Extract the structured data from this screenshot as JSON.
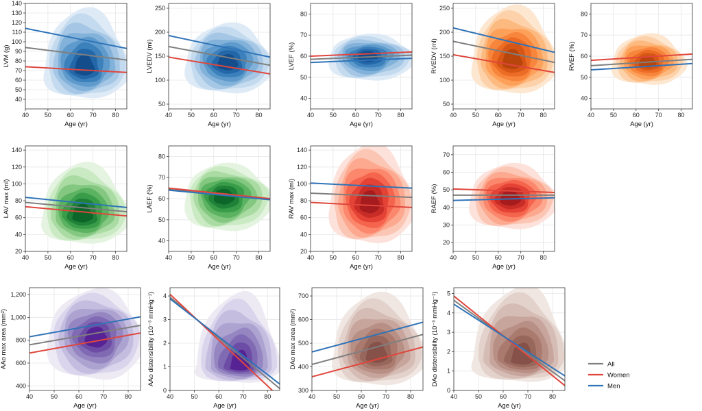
{
  "legend": [
    {
      "label": "All",
      "color": "#7f7f7f"
    },
    {
      "label": "Women",
      "color": "#e0463c"
    },
    {
      "label": "Men",
      "color": "#2f73b8"
    }
  ],
  "palettes": {
    "blue": [
      "#dbe9f6",
      "#c1d9ee",
      "#a2c6e4",
      "#7fb0d8",
      "#5b98ca",
      "#3a7fbb",
      "#2265a6",
      "#124b8a"
    ],
    "orange": [
      "#fde5cc",
      "#fdd0a6",
      "#fdb77d",
      "#fd9d57",
      "#f7823a",
      "#ea6a24",
      "#d45513",
      "#b5430c"
    ],
    "green": [
      "#e2f3dd",
      "#c8e8c1",
      "#a6d9a0",
      "#80c67e",
      "#58b15e",
      "#369a48",
      "#1d7f37",
      "#0b6428"
    ],
    "red": [
      "#fde0d8",
      "#fcc3b2",
      "#fca68d",
      "#fb866a",
      "#f4624b",
      "#e23f33",
      "#c62a26",
      "#a31a1c"
    ],
    "purple": [
      "#ebe8f3",
      "#d8d3ea",
      "#c2bbdd",
      "#aaa1cf",
      "#9283c0",
      "#7e68b2",
      "#6a4aa3",
      "#561f93"
    ],
    "brown": [
      "#efe4e0",
      "#e2d0c9",
      "#d4bab2",
      "#c5a39a",
      "#b68d83",
      "#a8786e",
      "#97655a",
      "#844f46"
    ]
  },
  "chart_data": [
    {
      "type": "line",
      "ylabel": "LVM (g)",
      "xlabel": "Age (yr)",
      "xlim": [
        40,
        85
      ],
      "xticks": [
        40,
        50,
        60,
        70,
        80
      ],
      "ylim": [
        30,
        140
      ],
      "yticks": [
        40,
        50,
        60,
        70,
        80,
        90,
        100,
        110,
        120,
        130,
        140
      ],
      "palette": "blue",
      "density": {
        "center": [
          66,
          72
        ],
        "spread": [
          9,
          13
        ],
        "range": [
          [
            48,
            86
          ],
          [
            40,
            132
          ]
        ]
      },
      "series": [
        {
          "name": "All",
          "values": [
            [
              40,
              94
            ],
            [
              85,
              81
            ]
          ]
        },
        {
          "name": "Women",
          "values": [
            [
              40,
              74
            ],
            [
              85,
              68
            ]
          ]
        },
        {
          "name": "Men",
          "values": [
            [
              40,
              114
            ],
            [
              85,
              93
            ]
          ]
        }
      ]
    },
    {
      "type": "line",
      "ylabel": "LVEDV (ml)",
      "xlabel": "Age (yr)",
      "xlim": [
        40,
        85
      ],
      "xticks": [
        40,
        50,
        60,
        70,
        80
      ],
      "ylim": [
        40,
        260
      ],
      "yticks": [
        50,
        100,
        150,
        200,
        250
      ],
      "palette": "blue",
      "density": {
        "center": [
          66,
          135
        ],
        "spread": [
          9,
          24
        ],
        "range": [
          [
            47,
            86
          ],
          [
            70,
            215
          ]
        ]
      },
      "series": [
        {
          "name": "All",
          "values": [
            [
              40,
              170
            ],
            [
              85,
              131
            ]
          ]
        },
        {
          "name": "Women",
          "values": [
            [
              40,
              148
            ],
            [
              85,
              113
            ]
          ]
        },
        {
          "name": "Men",
          "values": [
            [
              40,
              193
            ],
            [
              85,
              148
            ]
          ]
        }
      ]
    },
    {
      "type": "line",
      "ylabel": "LVEF (%)",
      "xlabel": "Age (yr)",
      "xlim": [
        40,
        85
      ],
      "xticks": [
        40,
        50,
        60,
        70,
        80
      ],
      "ylim": [
        35,
        85
      ],
      "yticks": [
        40,
        50,
        60,
        70,
        80
      ],
      "palette": "blue",
      "density": {
        "center": [
          65,
          60
        ],
        "spread": [
          9,
          4
        ],
        "range": [
          [
            48,
            86
          ],
          [
            48,
            70
          ]
        ]
      },
      "series": [
        {
          "name": "All",
          "values": [
            [
              40,
              58.5
            ],
            [
              85,
              60.5
            ]
          ]
        },
        {
          "name": "Women",
          "values": [
            [
              40,
              60
            ],
            [
              85,
              62
            ]
          ]
        },
        {
          "name": "Men",
          "values": [
            [
              40,
              57
            ],
            [
              85,
              59
            ]
          ]
        }
      ]
    },
    {
      "type": "line",
      "ylabel": "RVEDV (ml)",
      "xlabel": "Age (yr)",
      "xlim": [
        40,
        85
      ],
      "xticks": [
        40,
        50,
        60,
        70,
        80
      ],
      "ylim": [
        40,
        260
      ],
      "yticks": [
        50,
        100,
        150,
        200,
        250
      ],
      "palette": "orange",
      "density": {
        "center": [
          66,
          138
        ],
        "spread": [
          9,
          27
        ],
        "range": [
          [
            48,
            86
          ],
          [
            70,
            250
          ]
        ]
      },
      "series": [
        {
          "name": "All",
          "values": [
            [
              40,
              181
            ],
            [
              85,
              137
            ]
          ]
        },
        {
          "name": "Women",
          "values": [
            [
              40,
              153
            ],
            [
              85,
              116
            ]
          ]
        },
        {
          "name": "Men",
          "values": [
            [
              40,
              209
            ],
            [
              85,
              158
            ]
          ]
        }
      ]
    },
    {
      "type": "line",
      "ylabel": "RVEF (%)",
      "xlabel": "Age (yr)",
      "xlim": [
        40,
        85
      ],
      "xticks": [
        40,
        50,
        60,
        70,
        80
      ],
      "ylim": [
        35,
        85
      ],
      "yticks": [
        40,
        50,
        60,
        70,
        80
      ],
      "palette": "orange",
      "density": {
        "center": [
          65,
          57
        ],
        "spread": [
          9,
          4
        ],
        "range": [
          [
            49,
            82
          ],
          [
            46,
            70
          ]
        ]
      },
      "series": [
        {
          "name": "All",
          "values": [
            [
              40,
              55.5
            ],
            [
              85,
              58.5
            ]
          ]
        },
        {
          "name": "Women",
          "values": [
            [
              40,
              58
            ],
            [
              85,
              61
            ]
          ]
        },
        {
          "name": "Men",
          "values": [
            [
              40,
              53.5
            ],
            [
              85,
              56.5
            ]
          ]
        }
      ]
    },
    {
      "type": "line",
      "ylabel": "LAV max (ml)",
      "xlabel": "Age (yr)",
      "xlim": [
        40,
        85
      ],
      "xticks": [
        40,
        50,
        60,
        70,
        80
      ],
      "ylim": [
        20,
        145
      ],
      "yticks": [
        20,
        40,
        60,
        80,
        100,
        120,
        140
      ],
      "palette": "green",
      "density": {
        "center": [
          65,
          62
        ],
        "spread": [
          9,
          16
        ],
        "range": [
          [
            47,
            86
          ],
          [
            28,
            122
          ]
        ]
      },
      "series": [
        {
          "name": "All",
          "values": [
            [
              40,
              78
            ],
            [
              85,
              67
            ]
          ]
        },
        {
          "name": "Women",
          "values": [
            [
              40,
              73
            ],
            [
              85,
              62
            ]
          ]
        },
        {
          "name": "Men",
          "values": [
            [
              40,
              84
            ],
            [
              85,
              72
            ]
          ]
        }
      ]
    },
    {
      "type": "line",
      "ylabel": "LAEF (%)",
      "xlabel": "Age (yr)",
      "xlim": [
        40,
        85
      ],
      "xticks": [
        40,
        50,
        60,
        70,
        80
      ],
      "ylim": [
        35,
        85
      ],
      "yticks": [
        40,
        50,
        60,
        70,
        80
      ],
      "palette": "green",
      "density": {
        "center": [
          64,
          61
        ],
        "spread": [
          9,
          6
        ],
        "range": [
          [
            47,
            86
          ],
          [
            44,
            76
          ]
        ]
      },
      "series": [
        {
          "name": "All",
          "values": [
            [
              40,
              64.5
            ],
            [
              85,
              59.5
            ]
          ]
        },
        {
          "name": "Women",
          "values": [
            [
              40,
              65
            ],
            [
              85,
              60
            ]
          ]
        },
        {
          "name": "Men",
          "values": [
            [
              40,
              64
            ],
            [
              85,
              59.5
            ]
          ]
        }
      ]
    },
    {
      "type": "line",
      "ylabel": "RAV max (ml)",
      "xlabel": "Age (yr)",
      "xlim": [
        40,
        85
      ],
      "xticks": [
        40,
        50,
        60,
        70,
        80
      ],
      "ylim": [
        20,
        145
      ],
      "yticks": [
        20,
        40,
        60,
        80,
        100,
        120,
        140
      ],
      "palette": "red",
      "density": {
        "center": [
          66,
          76
        ],
        "spread": [
          9,
          18
        ],
        "range": [
          [
            48,
            86
          ],
          [
            28,
            144
          ]
        ]
      },
      "series": [
        {
          "name": "All",
          "values": [
            [
              40,
              89
            ],
            [
              85,
              84
            ]
          ]
        },
        {
          "name": "Women",
          "values": [
            [
              40,
              78
            ],
            [
              85,
              72
            ]
          ]
        },
        {
          "name": "Men",
          "values": [
            [
              40,
              101
            ],
            [
              85,
              95
            ]
          ]
        }
      ]
    },
    {
      "type": "line",
      "ylabel": "RAEF (%)",
      "xlabel": "Age (yr)",
      "xlim": [
        40,
        85
      ],
      "xticks": [
        40,
        50,
        60,
        70,
        80
      ],
      "ylim": [
        15,
        75
      ],
      "yticks": [
        20,
        30,
        40,
        50,
        60,
        70
      ],
      "palette": "red",
      "density": {
        "center": [
          65,
          45
        ],
        "spread": [
          9,
          7
        ],
        "range": [
          [
            47,
            86
          ],
          [
            27,
            64
          ]
        ]
      },
      "series": [
        {
          "name": "All",
          "values": [
            [
              40,
              47
            ],
            [
              85,
              47
            ]
          ]
        },
        {
          "name": "Women",
          "values": [
            [
              40,
              50.5
            ],
            [
              85,
              48.5
            ]
          ]
        },
        {
          "name": "Men",
          "values": [
            [
              40,
              44
            ],
            [
              85,
              45.5
            ]
          ]
        }
      ]
    },
    {
      "type": "line",
      "ylabel": "AAo max area (mm²)",
      "xlabel": "Age (yr)",
      "xlim": [
        40,
        85
      ],
      "xticks": [
        40,
        50,
        60,
        70,
        80
      ],
      "ylim": [
        360,
        1260
      ],
      "yticks": [
        400,
        600,
        800,
        1000,
        1200
      ],
      "yticklabels": [
        "400",
        "600",
        "800",
        "1,000",
        "1,200"
      ],
      "palette": "purple",
      "density": {
        "center": [
          67,
          820
        ],
        "spread": [
          9,
          145
        ],
        "range": [
          [
            47,
            86
          ],
          [
            440,
            1230
          ]
        ]
      },
      "series": [
        {
          "name": "All",
          "values": [
            [
              40,
              760
            ],
            [
              85,
              930
            ]
          ]
        },
        {
          "name": "Women",
          "values": [
            [
              40,
              688
            ],
            [
              85,
              863
            ]
          ]
        },
        {
          "name": "Men",
          "values": [
            [
              40,
              830
            ],
            [
              85,
              1005
            ]
          ]
        }
      ]
    },
    {
      "type": "line",
      "ylabel": "AAo distensibility (10⁻³ mmHg⁻¹)",
      "xlabel": "Age (yr)",
      "xlim": [
        40,
        85
      ],
      "xticks": [
        40,
        50,
        60,
        70,
        80
      ],
      "ylim": [
        0,
        4.35
      ],
      "yticks": [
        0,
        1,
        2,
        3,
        4
      ],
      "palette": "purple",
      "density": {
        "center": [
          69,
          1.0
        ],
        "spread": [
          8,
          0.55
        ],
        "range": [
          [
            50,
            85
          ],
          [
            0.3,
            4.0
          ]
        ]
      },
      "series": [
        {
          "name": "All",
          "values": [
            [
              40,
              3.95
            ],
            [
              85,
              0.08
            ]
          ]
        },
        {
          "name": "Women",
          "values": [
            [
              40,
              4.07
            ],
            [
              82,
              0
            ]
          ]
        },
        {
          "name": "Men",
          "values": [
            [
              40,
              3.88
            ],
            [
              85,
              0.27
            ]
          ]
        }
      ]
    },
    {
      "type": "line",
      "ylabel": "DAo max area (mm²)",
      "xlabel": "Age (yr)",
      "xlim": [
        40,
        85
      ],
      "xticks": [
        40,
        50,
        60,
        70,
        80
      ],
      "ylim": [
        300,
        735
      ],
      "yticks": [
        300,
        400,
        500,
        600,
        700
      ],
      "palette": "brown",
      "density": {
        "center": [
          66,
          445
        ],
        "spread": [
          9,
          62
        ],
        "range": [
          [
            48,
            86
          ],
          [
            318,
            700
          ]
        ]
      },
      "series": [
        {
          "name": "All",
          "values": [
            [
              40,
              410
            ],
            [
              85,
              537
            ]
          ]
        },
        {
          "name": "Women",
          "values": [
            [
              40,
              358
            ],
            [
              85,
              484
            ]
          ]
        },
        {
          "name": "Men",
          "values": [
            [
              40,
              463
            ],
            [
              85,
              589
            ]
          ]
        }
      ]
    },
    {
      "type": "line",
      "ylabel": "DAo distensibility (10⁻³ mmHg⁻¹)",
      "xlabel": "Age (yr)",
      "xlim": [
        40,
        85
      ],
      "xticks": [
        40,
        50,
        60,
        70,
        80
      ],
      "ylim": [
        0,
        5.3
      ],
      "yticks": [
        0,
        1,
        2,
        3,
        4,
        5
      ],
      "palette": "brown",
      "density": {
        "center": [
          68,
          1.6
        ],
        "spread": [
          8,
          0.75
        ],
        "range": [
          [
            47,
            86
          ],
          [
            0.4,
            5.2
          ]
        ]
      },
      "series": [
        {
          "name": "All",
          "values": [
            [
              40,
              4.65
            ],
            [
              85,
              0.5
            ]
          ]
        },
        {
          "name": "Women",
          "values": [
            [
              40,
              4.87
            ],
            [
              85,
              0.25
            ]
          ]
        },
        {
          "name": "Men",
          "values": [
            [
              40,
              4.45
            ],
            [
              85,
              0.75
            ]
          ]
        }
      ]
    }
  ]
}
